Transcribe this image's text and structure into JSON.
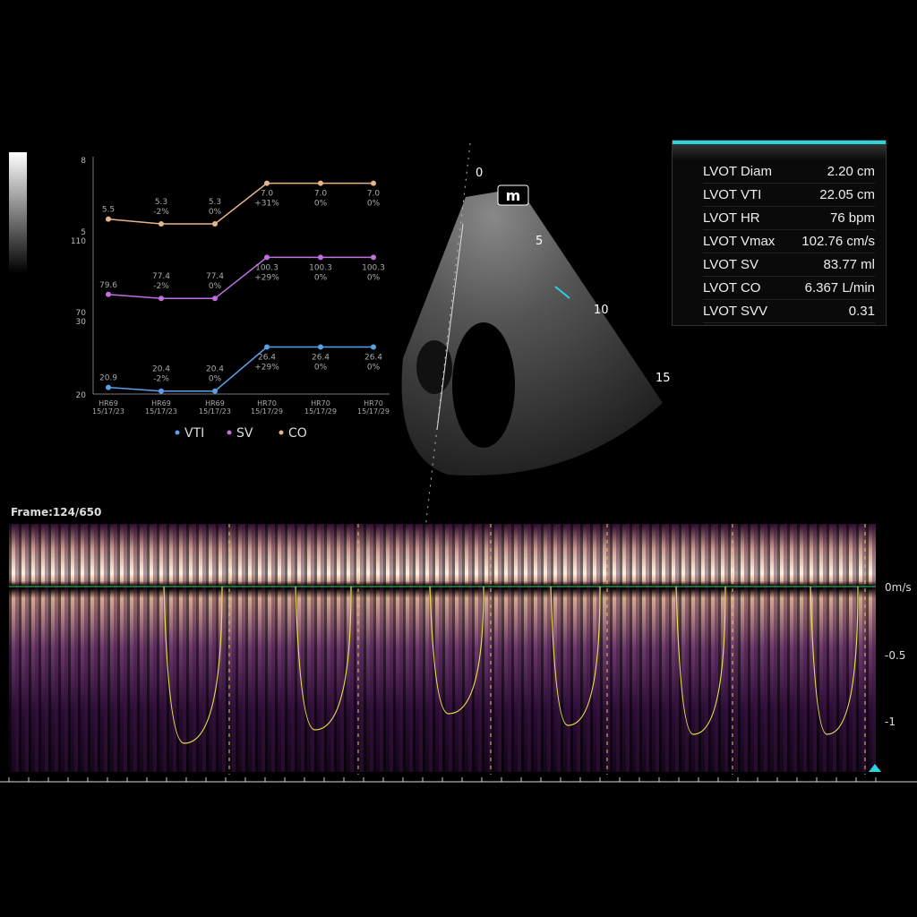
{
  "frame_label": "Frame:124/650",
  "measurements": [
    {
      "label": "LVOT Diam",
      "value": "2.20 cm"
    },
    {
      "label": "LVOT VTI",
      "value": "22.05 cm"
    },
    {
      "label": "LVOT HR",
      "value": "76 bpm"
    },
    {
      "label": "LVOT Vmax",
      "value": "102.76 cm/s"
    },
    {
      "label": "LVOT SV",
      "value": "83.77 ml"
    },
    {
      "label": "LVOT CO",
      "value": "6.367 L/min"
    },
    {
      "label": "LVOT SVV",
      "value": "0.31"
    }
  ],
  "image": {
    "mode_badge": "m",
    "depth_labels": [
      "0",
      "5",
      "10",
      "15"
    ]
  },
  "doppler": {
    "scale_labels": [
      "0m/s",
      "-0.5",
      "-1"
    ]
  },
  "chart_data": {
    "type": "line",
    "categories": [
      "HR69\n15/17/23",
      "HR69\n15/17/23",
      "HR69\n15/17/23",
      "HR70\n15/17/29",
      "HR70\n15/17/29",
      "HR70\n15/17/29"
    ],
    "legend": [
      "VTI",
      "SV",
      "CO"
    ],
    "series": [
      {
        "name": "CO",
        "color": "#e8b48a",
        "ylim": [
          5,
          8
        ],
        "ticks": [
          "8",
          "5"
        ],
        "values": [
          5.5,
          5.3,
          5.3,
          7.0,
          7.0,
          7.0
        ],
        "labels": [
          "5.5",
          "5.3",
          "5.3",
          "7.0",
          "7.0",
          "7.0"
        ],
        "changes": [
          "",
          "-2%",
          "0%",
          "+31%",
          "0%",
          "0%"
        ]
      },
      {
        "name": "SV",
        "color": "#c070e0",
        "ylim": [
          70,
          110
        ],
        "ticks": [
          "110",
          "70"
        ],
        "values": [
          79.6,
          77.4,
          77.4,
          100.3,
          100.3,
          100.3
        ],
        "labels": [
          "79.6",
          "77.4",
          "77.4",
          "100.3",
          "100.3",
          "100.3"
        ],
        "changes": [
          "",
          "-2%",
          "0%",
          "+29%",
          "0%",
          "0%"
        ]
      },
      {
        "name": "VTI",
        "color": "#5aa0e8",
        "ylim": [
          20,
          30
        ],
        "ticks": [
          "30",
          "20"
        ],
        "values": [
          20.9,
          20.4,
          20.4,
          26.4,
          26.4,
          26.4
        ],
        "labels": [
          "20.9",
          "20.4",
          "20.4",
          "26.4",
          "26.4",
          "26.4"
        ],
        "changes": [
          "",
          "-2%",
          "0%",
          "+29%",
          "0%",
          "0%"
        ]
      }
    ]
  }
}
